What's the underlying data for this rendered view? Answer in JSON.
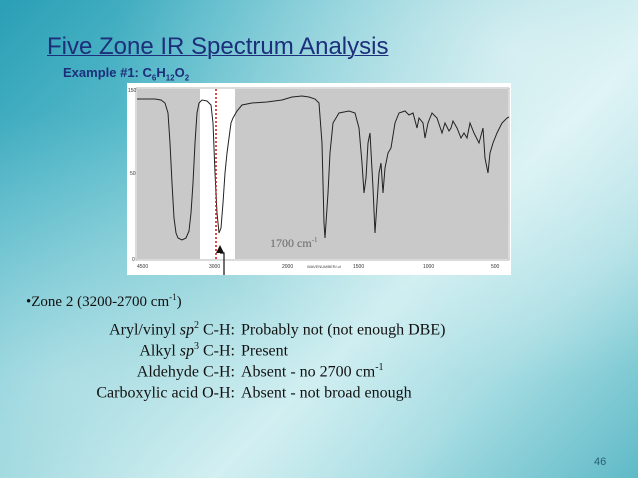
{
  "slide": {
    "title": "Five Zone IR Spectrum Analysis",
    "subtitle_prefix": "Example #1: C",
    "formula_sub1": "6",
    "formula_mid": "H",
    "formula_sub2": "12",
    "formula_o": "O",
    "formula_sub3": "2",
    "page_number": "46"
  },
  "spectrum": {
    "y_ticks": [
      "150",
      "50",
      "0"
    ],
    "x_ticks": [
      "4500",
      "3000",
      "2000",
      "1500",
      "1000",
      "500"
    ],
    "x_axis_label": "WAVENUMBER/-cl",
    "annotation_text": "1700 cm",
    "annotation_sup": "-1",
    "colors": {
      "shade": "#c9c9c9",
      "line": "#222222",
      "marker": "#d42020",
      "arrow": "#111111"
    }
  },
  "zone": {
    "prefix": "•Zone 2 (3200-2700 cm",
    "sup": "-1",
    "suffix": ")",
    "rows": [
      {
        "label_pre": "Aryl/vinyl ",
        "label_italic": "sp",
        "label_sup": "2",
        "label_post": " C-H:",
        "value": "Probably not (not enough DBE)",
        "value_sup": ""
      },
      {
        "label_pre": "Alkyl ",
        "label_italic": "sp",
        "label_sup": "3",
        "label_post": " C-H:",
        "value": "Present",
        "value_sup": ""
      },
      {
        "label_pre": "Aldehyde C-H:",
        "label_italic": "",
        "label_sup": "",
        "label_post": "",
        "value": "Absent - no 2700 cm",
        "value_sup": "-1"
      },
      {
        "label_pre": "Carboxylic acid O-H:",
        "label_italic": "",
        "label_sup": "",
        "label_post": "",
        "value": "Absent - not broad enough",
        "value_sup": ""
      }
    ]
  }
}
